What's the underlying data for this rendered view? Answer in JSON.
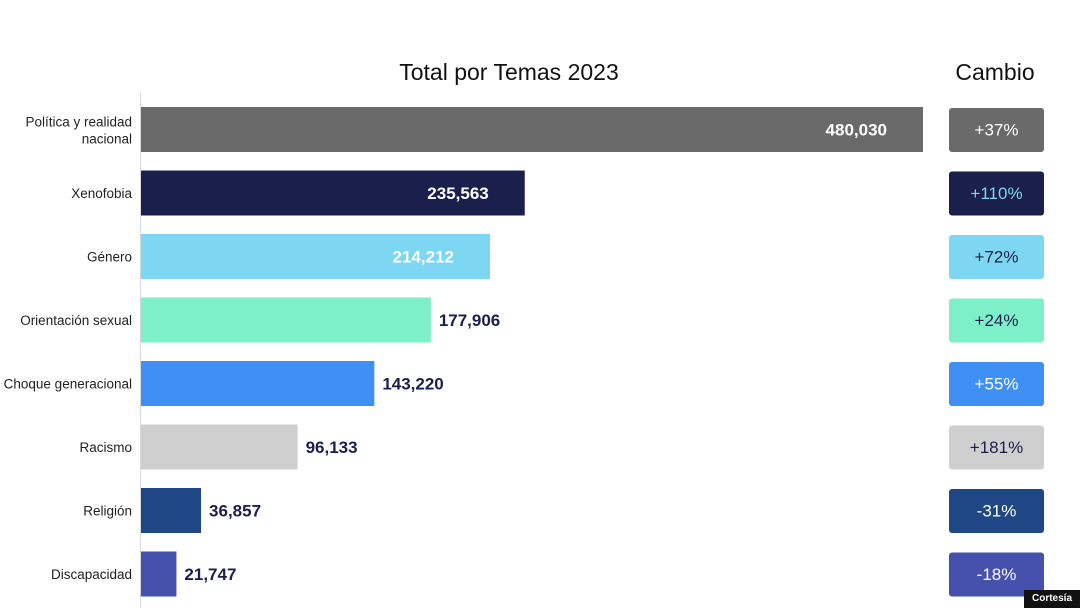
{
  "chart_data": {
    "type": "bar",
    "orientation": "horizontal",
    "title": "Total por Temas 2023",
    "change_header": "Cambio",
    "categories": [
      "Política y realidad nacional",
      "Xenofobia",
      "Género",
      "Orientación sexual",
      "Choque generacional",
      "Racismo",
      "Religión",
      "Discapacidad"
    ],
    "values": [
      480030,
      235563,
      214212,
      177906,
      143220,
      96133,
      36857,
      21747
    ],
    "value_labels": [
      "480,030",
      "235,563",
      "214,212",
      "177,906",
      "143,220",
      "96,133",
      "36,857",
      "21,747"
    ],
    "changes": [
      "+37%",
      "+110%",
      "+72%",
      "+24%",
      "+55%",
      "+181%",
      "-31%",
      "-18%"
    ],
    "colors": [
      "#6a6a6a",
      "#1b1f4b",
      "#7dd6f2",
      "#7df0c9",
      "#3f8ff5",
      "#cfcfcf",
      "#1f4685",
      "#4650ad"
    ],
    "change_text_colors": [
      "#ffffff",
      "#7dd6f2",
      "#1b1f4b",
      "#1b1f4b",
      "#ffffff",
      "#1b1f4b",
      "#ffffff",
      "#ffffff"
    ],
    "value_label_inside_color": "#ffffff",
    "value_label_outside_color": "#1b1f4b",
    "xlim": [
      0,
      480030
    ],
    "grid": false,
    "legend": "none"
  },
  "credit": "Cortesía"
}
